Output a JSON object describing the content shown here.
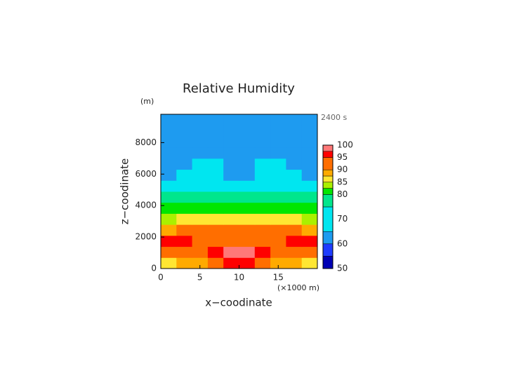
{
  "chart_data": {
    "type": "contour",
    "title": "Relative Humidity",
    "y_unit": "(m)",
    "time_label": "2400 s",
    "x_label": "x−coodinate",
    "y_label": "z−coodinate",
    "x_unit": "(×1000 m)",
    "xlim": [
      0,
      20
    ],
    "ylim": [
      0,
      9800
    ],
    "xticks": [
      0,
      5,
      10,
      15
    ],
    "yticks": [
      0,
      2000,
      4000,
      6000,
      8000
    ],
    "x": [
      0,
      2,
      4,
      6,
      8,
      10,
      12,
      14,
      16,
      18,
      20
    ],
    "y": [
      0,
      700,
      1400,
      2100,
      2800,
      3500,
      4200,
      4900,
      5600,
      6300,
      7000,
      7700,
      8400,
      9100,
      9800
    ],
    "z": [
      [
        87,
        88,
        89,
        91,
        95,
        95,
        91,
        89,
        88,
        87
      ],
      [
        92,
        93,
        94,
        96,
        98,
        98,
        96,
        94,
        93,
        92
      ],
      [
        96,
        95,
        93,
        92,
        93,
        93,
        92,
        93,
        95,
        96
      ],
      [
        89,
        90,
        91,
        91,
        91,
        91,
        91,
        91,
        90,
        89
      ],
      [
        84,
        86,
        86,
        86,
        86,
        86,
        86,
        86,
        86,
        84
      ],
      [
        80,
        81,
        82,
        82,
        82,
        82,
        82,
        82,
        81,
        80
      ],
      [
        76,
        77,
        78,
        78,
        78,
        78,
        78,
        78,
        77,
        76
      ],
      [
        72,
        73,
        73,
        73,
        73,
        73,
        73,
        73,
        73,
        72
      ],
      [
        64,
        68,
        69,
        68,
        64,
        64,
        68,
        69,
        68,
        64
      ],
      [
        62,
        63,
        66,
        66,
        63,
        63,
        66,
        66,
        63,
        62
      ],
      [
        62,
        62,
        62,
        62,
        62,
        62,
        62,
        62,
        62,
        62
      ],
      [
        62,
        62,
        62,
        62,
        62,
        62,
        62,
        62,
        62,
        62
      ],
      [
        62,
        62,
        62,
        62,
        62,
        62,
        62,
        62,
        62,
        62
      ],
      [
        62,
        62,
        62,
        62,
        62,
        62,
        62,
        62,
        62,
        62
      ]
    ],
    "levels": [
      50,
      55,
      60,
      65,
      75,
      80,
      82.5,
      85,
      87.5,
      90,
      95,
      97.5,
      100
    ],
    "level_colors": [
      "#0000b4",
      "#1e3cff",
      "#1e9bf0",
      "#00e6f0",
      "#00e68c",
      "#00e600",
      "#aaf000",
      "#ffe632",
      "#ffaa00",
      "#ff6e00",
      "#ff0000",
      "#ff7878",
      "#ffb4b4"
    ],
    "cbticks": [
      50,
      60,
      70,
      80,
      85,
      90,
      95,
      100
    ]
  }
}
